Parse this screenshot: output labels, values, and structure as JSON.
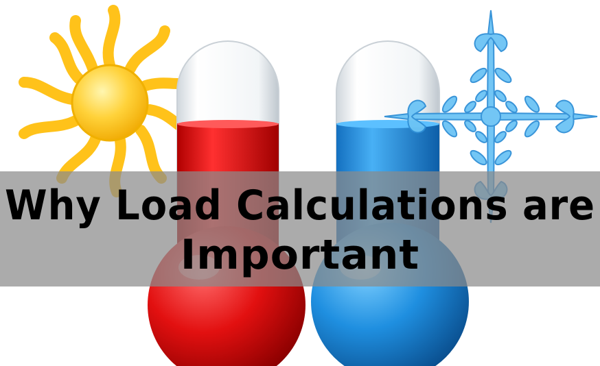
{
  "banner": {
    "lines": [
      "Why Load Calculations are",
      "Important"
    ]
  }
}
